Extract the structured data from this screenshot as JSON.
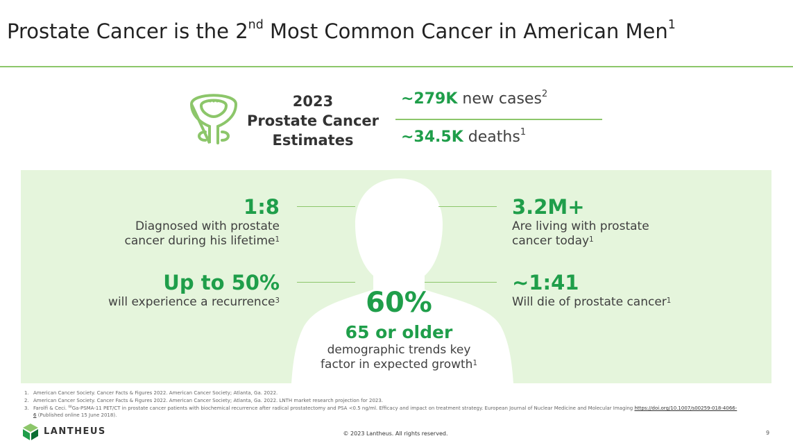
{
  "header": {
    "title": {
      "before": "Prostate Cancer is the 2",
      "sup": "nd",
      "after": " Most Common Cancer in American Men",
      "ref": "1"
    }
  },
  "estimates": {
    "year": "2023",
    "line1": "Prostate Cancer",
    "line2": "Estimates",
    "items": [
      {
        "value": "~279K",
        "text": "new cases",
        "ref": "2"
      },
      {
        "value": "~34.5K",
        "text": "deaths",
        "ref": "1"
      }
    ]
  },
  "stats": [
    {
      "value": "1:8",
      "lines": [
        "Diagnosed with prostate",
        "cancer during his lifetime"
      ],
      "ref": "1"
    },
    {
      "value": "3.2M+",
      "lines": [
        "Are living with prostate",
        "cancer today"
      ],
      "ref": "1"
    },
    {
      "value": "Up to 50%",
      "lines": [
        "will experience a recurrence"
      ],
      "ref": "3"
    },
    {
      "value": "~1:41",
      "lines": [
        "Will die of prostate cancer"
      ],
      "ref": "1"
    }
  ],
  "center": {
    "value": "60%",
    "label": "65 or older",
    "lines": [
      "demographic trends key",
      "factor in expected growth"
    ],
    "ref": "1"
  },
  "footnotes": [
    {
      "number": "1.",
      "text": "American Cancer Society. Cancer Facts & Figures 2022. American Cancer Society; Atlanta, Ga. 2022."
    },
    {
      "number": "2.",
      "text": "American Cancer Society. Cancer Facts & Figures 2022. American Cancer Society; Atlanta, Ga. 2022. LNTH market research projection for 2023."
    },
    {
      "number": "3.",
      "before": "Farolfi & Ceci. ",
      "sup": "68",
      "text": "Ga-PSMA-11 PET/CT in prostate cancer patients with biochemical recurrence after radical prostatectomy and PSA <0.5 ng/ml. Efficacy and impact on treatment strategy. European Journal of Nuclear Medicine and Molecular Imaging ",
      "link": "https://doi.org/10.1007/s00259-018-4066-6",
      "after": " (Published online 15 June 2018)."
    }
  ],
  "footer": {
    "logo": "LANTHEUS",
    "copyright": "© 2023 Lantheus. All rights reserved.",
    "page": "9"
  }
}
